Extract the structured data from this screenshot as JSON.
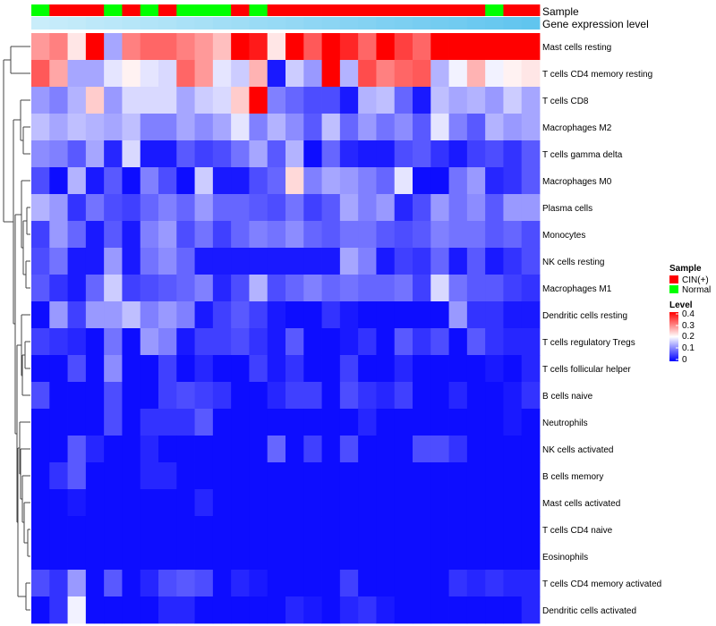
{
  "chart_data": {
    "type": "heatmap",
    "title": "",
    "annotation_labels": {
      "sample": "Sample",
      "gene_expression": "Gene expression level"
    },
    "rows": [
      "Mast cells resting",
      "T cells CD4 memory resting",
      "T cells CD8",
      "Macrophages M2",
      "T cells gamma delta",
      "Macrophages M0",
      "Plasma cells",
      "Monocytes",
      "NK cells resting",
      "Macrophages M1",
      "Dendritic cells resting",
      "T cells regulatory  Tregs",
      "T cells follicular helper",
      "B cells naive",
      "Neutrophils",
      "NK cells activated",
      "B cells memory",
      "Mast cells activated",
      "T cells CD4 naive",
      "Eosinophils",
      "T cells CD4 memory activated",
      "Dendritic cells activated"
    ],
    "sample_groups": [
      "Normal",
      "CIN(+)",
      "CIN(+)",
      "CIN(+)",
      "Normal",
      "CIN(+)",
      "Normal",
      "CIN(+)",
      "Normal",
      "Normal",
      "Normal",
      "CIN(+)",
      "Normal",
      "CIN(+)",
      "CIN(+)",
      "CIN(+)",
      "CIN(+)",
      "CIN(+)",
      "CIN(+)",
      "CIN(+)",
      "CIN(+)",
      "CIN(+)",
      "CIN(+)",
      "CIN(+)",
      "CIN(+)",
      "Normal",
      "CIN(+)",
      "CIN(+)"
    ],
    "gene_expression_level": [
      0.05,
      0.09,
      0.12,
      0.16,
      0.19,
      0.22,
      0.26,
      0.29,
      0.33,
      0.36,
      0.4,
      0.43,
      0.47,
      0.5,
      0.53,
      0.57,
      0.6,
      0.64,
      0.67,
      0.71,
      0.74,
      0.78,
      0.81,
      0.84,
      0.88,
      0.91,
      0.95,
      0.98
    ],
    "values": [
      [
        0.28,
        0.3,
        0.22,
        0.4,
        0.13,
        0.3,
        0.32,
        0.32,
        0.3,
        0.28,
        0.25,
        0.4,
        0.38,
        0.22,
        0.4,
        0.33,
        0.4,
        0.37,
        0.32,
        0.4,
        0.35,
        0.32,
        0.4,
        0.4,
        0.4,
        0.4,
        0.4,
        0.4
      ],
      [
        0.33,
        0.27,
        0.13,
        0.13,
        0.18,
        0.21,
        0.18,
        0.17,
        0.32,
        0.28,
        0.18,
        0.16,
        0.26,
        0.02,
        0.16,
        0.12,
        0.4,
        0.14,
        0.34,
        0.3,
        0.32,
        0.33,
        0.14,
        0.19,
        0.26,
        0.19,
        0.21,
        0.22
      ],
      [
        0.12,
        0.1,
        0.14,
        0.24,
        0.12,
        0.17,
        0.17,
        0.17,
        0.13,
        0.16,
        0.17,
        0.24,
        0.4,
        0.1,
        0.08,
        0.06,
        0.06,
        0.02,
        0.14,
        0.15,
        0.08,
        0.02,
        0.15,
        0.13,
        0.14,
        0.12,
        0.16,
        0.13
      ],
      [
        0.15,
        0.13,
        0.15,
        0.14,
        0.13,
        0.15,
        0.1,
        0.1,
        0.13,
        0.11,
        0.13,
        0.18,
        0.1,
        0.14,
        0.11,
        0.07,
        0.15,
        0.08,
        0.12,
        0.09,
        0.11,
        0.07,
        0.18,
        0.1,
        0.07,
        0.14,
        0.12,
        0.13
      ],
      [
        0.11,
        0.1,
        0.07,
        0.13,
        0.03,
        0.17,
        0.02,
        0.02,
        0.07,
        0.05,
        0.06,
        0.09,
        0.13,
        0.07,
        0.14,
        0.01,
        0.08,
        0.03,
        0.02,
        0.02,
        0.06,
        0.07,
        0.04,
        0.02,
        0.05,
        0.06,
        0.04,
        0.07
      ],
      [
        0.06,
        0.01,
        0.14,
        0.02,
        0.07,
        0.01,
        0.1,
        0.06,
        0.01,
        0.16,
        0.02,
        0.02,
        0.06,
        0.08,
        0.23,
        0.1,
        0.13,
        0.12,
        0.1,
        0.08,
        0.18,
        0.01,
        0.01,
        0.09,
        0.12,
        0.03,
        0.04,
        0.07
      ],
      [
        0.14,
        0.12,
        0.04,
        0.09,
        0.06,
        0.05,
        0.08,
        0.1,
        0.08,
        0.12,
        0.08,
        0.08,
        0.07,
        0.06,
        0.09,
        0.05,
        0.07,
        0.13,
        0.1,
        0.12,
        0.03,
        0.06,
        0.12,
        0.09,
        0.11,
        0.07,
        0.12,
        0.12
      ],
      [
        0.05,
        0.12,
        0.08,
        0.02,
        0.07,
        0.02,
        0.1,
        0.12,
        0.06,
        0.09,
        0.05,
        0.08,
        0.1,
        0.09,
        0.11,
        0.08,
        0.07,
        0.09,
        0.09,
        0.07,
        0.06,
        0.07,
        0.1,
        0.09,
        0.09,
        0.07,
        0.08,
        0.06
      ],
      [
        0.06,
        0.09,
        0.02,
        0.02,
        0.12,
        0.02,
        0.09,
        0.11,
        0.08,
        0.02,
        0.02,
        0.02,
        0.02,
        0.02,
        0.02,
        0.02,
        0.02,
        0.13,
        0.1,
        0.02,
        0.05,
        0.04,
        0.08,
        0.02,
        0.07,
        0.02,
        0.04,
        0.06
      ],
      [
        0.07,
        0.04,
        0.02,
        0.08,
        0.16,
        0.05,
        0.06,
        0.07,
        0.08,
        0.1,
        0.03,
        0.06,
        0.14,
        0.06,
        0.08,
        0.1,
        0.08,
        0.09,
        0.08,
        0.08,
        0.09,
        0.05,
        0.17,
        0.09,
        0.07,
        0.07,
        0.05,
        0.04
      ],
      [
        0.01,
        0.12,
        0.05,
        0.12,
        0.12,
        0.15,
        0.1,
        0.12,
        0.1,
        0.02,
        0.05,
        0.07,
        0.05,
        0.02,
        0.01,
        0.01,
        0.04,
        0.02,
        0.01,
        0.01,
        0.01,
        0.01,
        0.01,
        0.12,
        0.04,
        0.04,
        0.02,
        0.02
      ],
      [
        0.05,
        0.04,
        0.03,
        0.01,
        0.09,
        0.01,
        0.12,
        0.1,
        0.02,
        0.05,
        0.05,
        0.06,
        0.04,
        0.02,
        0.07,
        0.01,
        0.01,
        0.02,
        0.04,
        0.01,
        0.07,
        0.04,
        0.06,
        0.01,
        0.07,
        0.04,
        0.03,
        0.03
      ],
      [
        0.01,
        0.01,
        0.06,
        0.01,
        0.11,
        0.01,
        0.01,
        0.05,
        0.01,
        0.03,
        0.01,
        0.01,
        0.05,
        0.02,
        0.04,
        0.01,
        0.01,
        0.05,
        0.01,
        0.01,
        0.03,
        0.01,
        0.01,
        0.01,
        0.01,
        0.02,
        0.01,
        0.03
      ],
      [
        0.06,
        0.01,
        0.01,
        0.01,
        0.06,
        0.01,
        0.01,
        0.05,
        0.06,
        0.05,
        0.04,
        0.01,
        0.01,
        0.03,
        0.05,
        0.05,
        0.01,
        0.06,
        0.04,
        0.03,
        0.05,
        0.01,
        0.01,
        0.03,
        0.01,
        0.01,
        0.02,
        0.04
      ],
      [
        0.01,
        0.01,
        0.01,
        0.01,
        0.06,
        0.01,
        0.04,
        0.04,
        0.04,
        0.07,
        0.01,
        0.01,
        0.01,
        0.01,
        0.01,
        0.01,
        0.01,
        0.01,
        0.03,
        0.01,
        0.01,
        0.01,
        0.01,
        0.01,
        0.01,
        0.01,
        0.02,
        0.01
      ],
      [
        0.01,
        0.01,
        0.07,
        0.03,
        0.01,
        0.01,
        0.03,
        0.01,
        0.01,
        0.01,
        0.01,
        0.01,
        0.01,
        0.08,
        0.01,
        0.05,
        0.01,
        0.06,
        0.01,
        0.01,
        0.01,
        0.06,
        0.06,
        0.04,
        0.01,
        0.01,
        0.01,
        0.01
      ],
      [
        0.01,
        0.04,
        0.07,
        0.01,
        0.01,
        0.01,
        0.03,
        0.03,
        0.01,
        0.01,
        0.01,
        0.01,
        0.01,
        0.01,
        0.01,
        0.01,
        0.01,
        0.01,
        0.01,
        0.01,
        0.01,
        0.01,
        0.01,
        0.01,
        0.01,
        0.01,
        0.01,
        0.01
      ],
      [
        0.01,
        0.01,
        0.02,
        0.01,
        0.01,
        0.01,
        0.01,
        0.01,
        0.01,
        0.03,
        0.01,
        0.01,
        0.01,
        0.01,
        0.01,
        0.01,
        0.01,
        0.01,
        0.01,
        0.01,
        0.01,
        0.01,
        0.01,
        0.01,
        0.01,
        0.01,
        0.01,
        0.01
      ],
      [
        0.01,
        0.01,
        0.01,
        0.01,
        0.01,
        0.01,
        0.01,
        0.01,
        0.01,
        0.01,
        0.01,
        0.01,
        0.01,
        0.01,
        0.01,
        0.01,
        0.01,
        0.01,
        0.01,
        0.01,
        0.01,
        0.01,
        0.01,
        0.01,
        0.01,
        0.01,
        0.01,
        0.01
      ],
      [
        0.01,
        0.01,
        0.01,
        0.01,
        0.01,
        0.01,
        0.01,
        0.01,
        0.01,
        0.01,
        0.01,
        0.01,
        0.01,
        0.01,
        0.01,
        0.01,
        0.01,
        0.01,
        0.01,
        0.01,
        0.01,
        0.01,
        0.01,
        0.01,
        0.01,
        0.01,
        0.01,
        0.01
      ],
      [
        0.06,
        0.04,
        0.12,
        0.01,
        0.07,
        0.01,
        0.03,
        0.06,
        0.07,
        0.06,
        0.01,
        0.03,
        0.02,
        0.01,
        0.01,
        0.01,
        0.01,
        0.05,
        0.01,
        0.01,
        0.01,
        0.01,
        0.01,
        0.04,
        0.03,
        0.04,
        0.03,
        0.03
      ],
      [
        0.01,
        0.04,
        0.19,
        0.01,
        0.01,
        0.01,
        0.01,
        0.03,
        0.03,
        0.01,
        0.01,
        0.01,
        0.01,
        0.01,
        0.03,
        0.02,
        0.01,
        0.03,
        0.04,
        0.02,
        0.01,
        0.01,
        0.01,
        0.01,
        0.01,
        0.01,
        0.01,
        0.03
      ]
    ],
    "color_scale": {
      "min": 0,
      "mid": 0.2,
      "max": 0.4,
      "low": "#0000FF",
      "mid_color": "#FFFFFF",
      "high": "#FF0000"
    },
    "expression_bar_colors": {
      "low": "#CFEFFB",
      "high": "#5FC4EE"
    },
    "legend": {
      "sample": {
        "title": "Sample",
        "items": [
          {
            "label": "CIN(+)",
            "color": "#FF0000"
          },
          {
            "label": "Normal",
            "color": "#00FF00"
          }
        ]
      },
      "level": {
        "title": "Level",
        "ticks": [
          "0.4",
          "0.3",
          "0.2",
          "0.1",
          "0"
        ]
      }
    },
    "dendrogram": "hierarchical row clustering"
  }
}
